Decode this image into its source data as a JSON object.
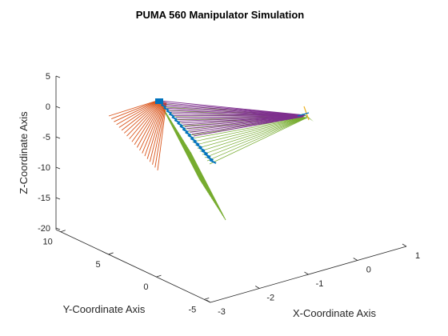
{
  "chart_data": {
    "type": "line",
    "title": "PUMA 560 Manipulator Simulation",
    "xlabel": "X-Coordinate Axis",
    "ylabel": "Y-Coordinate Axis",
    "zlabel": "Z-Coordinate Axis",
    "xlim": [
      -3,
      1
    ],
    "ylim": [
      -5,
      10
    ],
    "zlim": [
      -20,
      5
    ],
    "xticks": [
      "-3",
      "-2",
      "-1",
      "0",
      "1"
    ],
    "yticks": [
      "-5",
      "0",
      "5",
      "10"
    ],
    "zticks": [
      "-20",
      "-15",
      "-10",
      "-5",
      "0",
      "5"
    ],
    "grid": false,
    "colors": {
      "link1": "#D95319",
      "link2": "#7E2F8E",
      "link3": "#77AC30",
      "joint": "#0072BD",
      "tool": "#EDB120"
    },
    "series": [
      {
        "color_key": "link1",
        "segment": "base-shoulder fan",
        "start": [
          [
            0.53,
            0.282
          ],
          [
            0.55,
            0.282
          ]
        ],
        "end_from": [
          [
            0.244,
            0.347
          ],
          [
            0.246,
            0.362
          ]
        ],
        "end_to": [
          [
            0.352,
            0.506
          ],
          [
            0.356,
            0.509
          ]
        ],
        "count": 20
      },
      {
        "color_key": "link2",
        "segment": "shoulder-elbow fan",
        "start_from": [
          0.358,
          0.302
        ],
        "start_to": [
          0.372,
          0.295
        ],
        "end": [
          [
            0.682,
            0.345
          ]
        ],
        "count": 20
      },
      {
        "color_key": "link3",
        "segment": "elbow-wrist fan",
        "count": 20
      }
    ]
  }
}
